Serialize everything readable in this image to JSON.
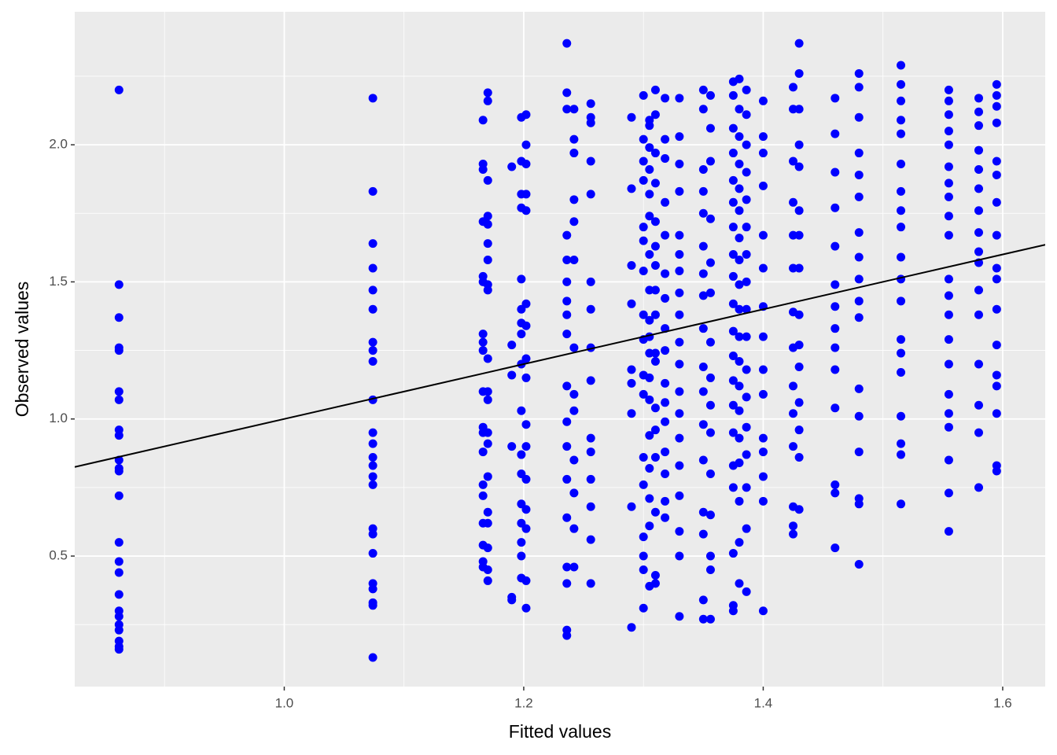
{
  "chart_data": {
    "type": "scatter",
    "x_label": "Fitted values",
    "y_label": "Observed values",
    "color": "#0000ff",
    "grid": true,
    "xlim": [
      0.825,
      1.6355
    ],
    "ylim": [
      0.024,
      2.485
    ],
    "xticks": [
      {
        "value": 1,
        "label": "1.0"
      },
      1.2,
      1.4,
      1.6
    ],
    "yticks": [
      0.5,
      {
        "value": 1,
        "label": "1.0"
      },
      1.5,
      {
        "value": 2,
        "label": "2.0"
      }
    ],
    "xminor": [
      0.9,
      1.1,
      1.3,
      1.5
    ],
    "yminor": [
      0.25,
      0.75,
      1.25,
      1.75,
      2.25
    ],
    "reference_line": {
      "intercept": 0,
      "slope": 1
    },
    "x": [
      0.862,
      0.862,
      0.862,
      0.862,
      0.862,
      0.862,
      0.862,
      0.862,
      0.862,
      0.862,
      0.862,
      0.862,
      0.862,
      0.862,
      0.862,
      0.862,
      0.862,
      0.862,
      0.862,
      0.862,
      0.862,
      0.862,
      0.862,
      0.862,
      1.074,
      1.074,
      1.074,
      1.074,
      1.074,
      1.074,
      1.074,
      1.074,
      1.074,
      1.074,
      1.074,
      1.074,
      1.074,
      1.074,
      1.074,
      1.074,
      1.074,
      1.074,
      1.074,
      1.074,
      1.074,
      1.074,
      1.074,
      1.074,
      1.166,
      1.166,
      1.166,
      1.166,
      1.166,
      1.166,
      1.166,
      1.166,
      1.166,
      1.166,
      1.166,
      1.166,
      1.166,
      1.166,
      1.166,
      1.166,
      1.166,
      1.166,
      1.166,
      1.17,
      1.17,
      1.17,
      1.17,
      1.17,
      1.17,
      1.17,
      1.17,
      1.17,
      1.17,
      1.17,
      1.17,
      1.17,
      1.17,
      1.17,
      1.17,
      1.17,
      1.17,
      1.17,
      1.17,
      1.19,
      1.19,
      1.19,
      1.19,
      1.19,
      1.19,
      1.198,
      1.198,
      1.198,
      1.198,
      1.198,
      1.198,
      1.198,
      1.198,
      1.198,
      1.198,
      1.198,
      1.198,
      1.198,
      1.198,
      1.198,
      1.198,
      1.198,
      1.202,
      1.202,
      1.202,
      1.202,
      1.202,
      1.202,
      1.202,
      1.202,
      1.202,
      1.202,
      1.202,
      1.202,
      1.202,
      1.202,
      1.202,
      1.202,
      1.236,
      1.236,
      1.236,
      1.236,
      1.236,
      1.236,
      1.236,
      1.236,
      1.236,
      1.236,
      1.236,
      1.236,
      1.236,
      1.236,
      1.236,
      1.236,
      1.236,
      1.236,
      1.242,
      1.242,
      1.242,
      1.242,
      1.242,
      1.242,
      1.242,
      1.242,
      1.242,
      1.242,
      1.242,
      1.242,
      1.242,
      1.256,
      1.256,
      1.256,
      1.256,
      1.256,
      1.256,
      1.256,
      1.256,
      1.256,
      1.256,
      1.256,
      1.256,
      1.256,
      1.256,
      1.256,
      1.29,
      1.29,
      1.29,
      1.29,
      1.29,
      1.29,
      1.29,
      1.29,
      1.29,
      1.3,
      1.3,
      1.3,
      1.3,
      1.3,
      1.3,
      1.3,
      1.3,
      1.3,
      1.3,
      1.3,
      1.3,
      1.3,
      1.3,
      1.3,
      1.3,
      1.3,
      1.305,
      1.305,
      1.305,
      1.305,
      1.305,
      1.305,
      1.305,
      1.305,
      1.305,
      1.305,
      1.305,
      1.305,
      1.305,
      1.305,
      1.305,
      1.305,
      1.305,
      1.305,
      1.31,
      1.31,
      1.31,
      1.31,
      1.31,
      1.31,
      1.31,
      1.31,
      1.31,
      1.31,
      1.31,
      1.31,
      1.31,
      1.31,
      1.31,
      1.31,
      1.31,
      1.318,
      1.318,
      1.318,
      1.318,
      1.318,
      1.318,
      1.318,
      1.318,
      1.318,
      1.318,
      1.318,
      1.318,
      1.318,
      1.318,
      1.318,
      1.318,
      1.33,
      1.33,
      1.33,
      1.33,
      1.33,
      1.33,
      1.33,
      1.33,
      1.33,
      1.33,
      1.33,
      1.33,
      1.33,
      1.33,
      1.33,
      1.33,
      1.33,
      1.33,
      1.33,
      1.35,
      1.35,
      1.35,
      1.35,
      1.35,
      1.35,
      1.35,
      1.35,
      1.35,
      1.35,
      1.35,
      1.35,
      1.35,
      1.35,
      1.35,
      1.35,
      1.35,
      1.356,
      1.356,
      1.356,
      1.356,
      1.356,
      1.356,
      1.356,
      1.356,
      1.356,
      1.356,
      1.356,
      1.356,
      1.356,
      1.356,
      1.356,
      1.375,
      1.375,
      1.375,
      1.375,
      1.375,
      1.375,
      1.375,
      1.375,
      1.375,
      1.375,
      1.375,
      1.375,
      1.375,
      1.375,
      1.375,
      1.375,
      1.375,
      1.375,
      1.375,
      1.375,
      1.38,
      1.38,
      1.38,
      1.38,
      1.38,
      1.38,
      1.38,
      1.38,
      1.38,
      1.38,
      1.38,
      1.38,
      1.38,
      1.38,
      1.38,
      1.38,
      1.38,
      1.38,
      1.38,
      1.386,
      1.386,
      1.386,
      1.386,
      1.386,
      1.386,
      1.386,
      1.386,
      1.386,
      1.386,
      1.386,
      1.386,
      1.386,
      1.386,
      1.386,
      1.386,
      1.386,
      1.4,
      1.4,
      1.4,
      1.4,
      1.4,
      1.4,
      1.4,
      1.4,
      1.4,
      1.4,
      1.4,
      1.4,
      1.4,
      1.4,
      1.4,
      1.425,
      1.425,
      1.425,
      1.425,
      1.425,
      1.425,
      1.425,
      1.425,
      1.425,
      1.425,
      1.425,
      1.425,
      1.425,
      1.425,
      1.43,
      1.43,
      1.43,
      1.43,
      1.43,
      1.43,
      1.43,
      1.43,
      1.43,
      1.43,
      1.43,
      1.43,
      1.43,
      1.43,
      1.43,
      1.46,
      1.46,
      1.46,
      1.46,
      1.46,
      1.46,
      1.46,
      1.46,
      1.46,
      1.46,
      1.46,
      1.46,
      1.46,
      1.46,
      1.48,
      1.48,
      1.48,
      1.48,
      1.48,
      1.48,
      1.48,
      1.48,
      1.48,
      1.48,
      1.48,
      1.48,
      1.48,
      1.48,
      1.48,
      1.48,
      1.48,
      1.515,
      1.515,
      1.515,
      1.515,
      1.515,
      1.515,
      1.515,
      1.515,
      1.515,
      1.515,
      1.515,
      1.515,
      1.515,
      1.515,
      1.515,
      1.515,
      1.515,
      1.515,
      1.515,
      1.555,
      1.555,
      1.555,
      1.555,
      1.555,
      1.555,
      1.555,
      1.555,
      1.555,
      1.555,
      1.555,
      1.555,
      1.555,
      1.555,
      1.555,
      1.555,
      1.555,
      1.555,
      1.555,
      1.555,
      1.555,
      1.58,
      1.58,
      1.58,
      1.58,
      1.58,
      1.58,
      1.58,
      1.58,
      1.58,
      1.58,
      1.58,
      1.58,
      1.58,
      1.58,
      1.58,
      1.58,
      1.595,
      1.595,
      1.595,
      1.595,
      1.595,
      1.595,
      1.595,
      1.595,
      1.595,
      1.595,
      1.595,
      1.595,
      1.595,
      1.595,
      1.595,
      1.595,
      1.595
    ],
    "values": [
      2.2,
      1.49,
      1.37,
      1.26,
      1.25,
      1.1,
      1.07,
      0.96,
      0.94,
      0.85,
      0.82,
      0.81,
      0.72,
      0.55,
      0.48,
      0.44,
      0.36,
      0.3,
      0.28,
      0.25,
      0.23,
      0.19,
      0.17,
      0.16,
      2.17,
      1.83,
      1.64,
      1.55,
      1.47,
      1.4,
      1.28,
      1.25,
      1.21,
      1.07,
      0.95,
      0.91,
      0.86,
      0.83,
      0.79,
      0.76,
      0.6,
      0.58,
      0.51,
      0.4,
      0.38,
      0.33,
      0.32,
      0.13,
      2.09,
      1.93,
      1.91,
      1.72,
      1.52,
      1.5,
      1.31,
      1.28,
      1.25,
      1.1,
      0.97,
      0.95,
      0.88,
      0.76,
      0.72,
      0.62,
      0.54,
      0.48,
      0.46,
      2.19,
      2.16,
      1.87,
      1.74,
      1.71,
      1.64,
      1.58,
      1.49,
      1.47,
      1.22,
      1.1,
      1.07,
      0.95,
      0.91,
      0.79,
      0.66,
      0.62,
      0.53,
      0.45,
      0.41,
      1.92,
      1.27,
      1.16,
      0.9,
      0.35,
      0.34,
      2.1,
      1.94,
      1.82,
      1.77,
      1.51,
      1.4,
      1.35,
      1.31,
      1.2,
      1.03,
      0.87,
      0.8,
      0.69,
      0.62,
      0.55,
      0.5,
      0.42,
      2.11,
      2.0,
      1.93,
      1.82,
      1.76,
      1.42,
      1.34,
      1.22,
      1.15,
      0.98,
      0.9,
      0.78,
      0.67,
      0.6,
      0.41,
      0.31,
      2.37,
      2.19,
      2.13,
      1.67,
      1.58,
      1.5,
      1.43,
      1.38,
      1.31,
      1.12,
      0.99,
      0.9,
      0.78,
      0.64,
      0.46,
      0.4,
      0.23,
      0.21,
      2.13,
      2.02,
      1.97,
      1.8,
      1.72,
      1.58,
      1.26,
      1.09,
      1.03,
      0.85,
      0.73,
      0.6,
      0.46,
      2.15,
      2.1,
      2.08,
      1.94,
      1.82,
      1.5,
      1.4,
      1.26,
      1.14,
      0.93,
      0.88,
      0.78,
      0.68,
      0.56,
      0.4,
      2.1,
      1.84,
      1.56,
      1.42,
      1.18,
      1.13,
      1.02,
      0.68,
      0.24,
      2.18,
      2.02,
      1.94,
      1.87,
      1.7,
      1.65,
      1.54,
      1.38,
      1.29,
      1.16,
      1.09,
      0.86,
      0.76,
      0.57,
      0.5,
      0.45,
      0.31,
      2.09,
      2.07,
      1.99,
      1.91,
      1.82,
      1.74,
      1.6,
      1.47,
      1.36,
      1.3,
      1.24,
      1.15,
      1.07,
      0.94,
      0.82,
      0.71,
      0.61,
      0.39,
      2.2,
      2.11,
      1.97,
      1.86,
      1.72,
      1.63,
      1.56,
      1.47,
      1.38,
      1.24,
      1.21,
      1.04,
      0.96,
      0.86,
      0.66,
      0.43,
      0.4,
      2.17,
      2.02,
      1.95,
      1.79,
      1.67,
      1.53,
      1.44,
      1.33,
      1.25,
      1.13,
      1.06,
      0.99,
      0.88,
      0.8,
      0.7,
      0.64,
      2.17,
      2.03,
      1.93,
      1.83,
      1.67,
      1.6,
      1.54,
      1.46,
      1.38,
      1.28,
      1.2,
      1.1,
      1.02,
      0.93,
      0.83,
      0.72,
      0.59,
      0.5,
      0.28,
      2.2,
      2.13,
      1.91,
      1.83,
      1.75,
      1.63,
      1.53,
      1.45,
      1.33,
      1.19,
      1.1,
      0.98,
      0.85,
      0.66,
      0.58,
      0.34,
      0.27,
      2.18,
      2.06,
      1.94,
      1.73,
      1.57,
      1.46,
      1.28,
      1.15,
      1.05,
      0.95,
      0.8,
      0.65,
      0.5,
      0.45,
      0.27,
      2.23,
      2.18,
      2.06,
      1.97,
      1.87,
      1.79,
      1.7,
      1.6,
      1.52,
      1.42,
      1.32,
      1.23,
      1.14,
      1.05,
      0.95,
      0.83,
      0.75,
      0.51,
      0.32,
      0.3,
      2.24,
      2.13,
      2.03,
      1.93,
      1.84,
      1.76,
      1.66,
      1.58,
      1.49,
      1.4,
      1.3,
      1.21,
      1.12,
      1.03,
      0.93,
      0.84,
      0.7,
      0.55,
      0.4,
      2.2,
      2.11,
      2.0,
      1.9,
      1.8,
      1.7,
      1.6,
      1.5,
      1.4,
      1.3,
      1.18,
      1.08,
      0.97,
      0.87,
      0.75,
      0.6,
      0.37,
      2.16,
      2.03,
      1.97,
      1.85,
      1.67,
      1.55,
      1.41,
      1.3,
      1.18,
      1.09,
      0.93,
      0.88,
      0.79,
      0.7,
      0.3,
      2.21,
      2.13,
      1.94,
      1.79,
      1.67,
      1.55,
      1.39,
      1.26,
      1.12,
      1.02,
      0.9,
      0.68,
      0.61,
      0.58,
      2.37,
      2.26,
      2.13,
      2.0,
      1.92,
      1.76,
      1.67,
      1.55,
      1.38,
      1.27,
      1.19,
      1.06,
      0.96,
      0.86,
      0.67,
      2.17,
      2.04,
      1.9,
      1.77,
      1.63,
      1.49,
      1.41,
      1.33,
      1.26,
      1.18,
      1.04,
      0.76,
      0.73,
      0.53,
      2.26,
      2.21,
      2.1,
      1.97,
      1.89,
      1.81,
      1.68,
      1.59,
      1.51,
      1.43,
      1.37,
      1.11,
      1.01,
      0.88,
      0.71,
      0.69,
      0.47,
      2.29,
      2.22,
      2.16,
      2.09,
      2.04,
      1.93,
      1.83,
      1.76,
      1.7,
      1.59,
      1.51,
      1.43,
      1.29,
      1.24,
      1.17,
      1.01,
      0.91,
      0.87,
      0.69,
      2.2,
      2.16,
      2.11,
      2.05,
      2.0,
      1.92,
      1.86,
      1.81,
      1.74,
      1.67,
      1.51,
      1.45,
      1.38,
      1.29,
      1.2,
      1.09,
      1.02,
      0.97,
      0.85,
      0.73,
      0.59,
      2.17,
      2.12,
      2.07,
      1.98,
      1.91,
      1.84,
      1.76,
      1.68,
      1.61,
      1.57,
      1.47,
      1.38,
      1.2,
      1.05,
      0.95,
      0.75,
      2.22,
      2.18,
      2.14,
      2.08,
      1.94,
      1.89,
      1.79,
      1.67,
      1.55,
      1.51,
      1.4,
      1.27,
      1.16,
      1.12,
      1.02,
      0.83,
      0.81
    ]
  }
}
